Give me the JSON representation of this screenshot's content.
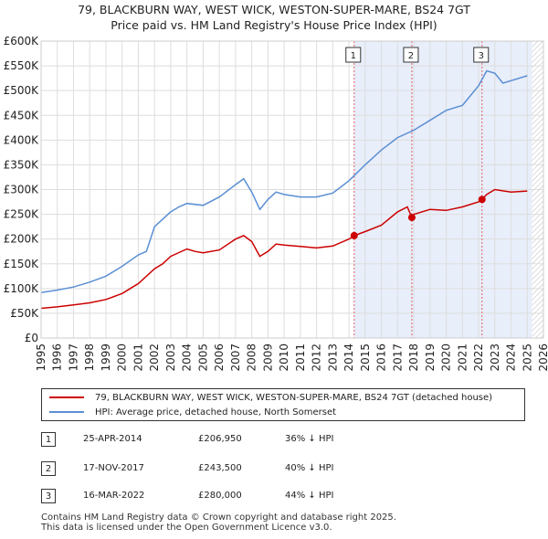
{
  "title": {
    "line1": "79, BLACKBURN WAY, WEST WICK, WESTON-SUPER-MARE, BS24 7GT",
    "line2": "Price paid vs. HM Land Registry's House Price Index (HPI)"
  },
  "legend": {
    "property_label": "79, BLACKBURN WAY, WEST WICK, WESTON-SUPER-MARE, BS24 7GT (detached house)",
    "hpi_label": "HPI: Average price, detached house, North Somerset"
  },
  "colors": {
    "property": "#cc0000",
    "hpi": "#5b8fd4",
    "shade": "#e8eefa",
    "sale_marker_line": "#e06060",
    "grid": "#dddddd"
  },
  "sales": [
    {
      "num": "1",
      "date": "25-APR-2014",
      "price": "£206,950",
      "hpi": "36% ↓ HPI"
    },
    {
      "num": "2",
      "date": "17-NOV-2017",
      "price": "£243,500",
      "hpi": "40% ↓ HPI"
    },
    {
      "num": "3",
      "date": "16-MAR-2022",
      "price": "£280,000",
      "hpi": "44% ↓ HPI"
    }
  ],
  "footer": {
    "line1": "Contains HM Land Registry data © Crown copyright and database right 2025.",
    "line2": "This data is licensed under the Open Government Licence v3.0."
  },
  "chart_data": {
    "type": "line",
    "xlim": [
      1995,
      2026
    ],
    "ylim": [
      0,
      600000
    ],
    "x_ticks": [
      1995,
      1996,
      1997,
      1998,
      1999,
      2000,
      2001,
      2002,
      2003,
      2004,
      2005,
      2006,
      2007,
      2008,
      2009,
      2010,
      2011,
      2012,
      2013,
      2014,
      2015,
      2016,
      2017,
      2018,
      2019,
      2020,
      2021,
      2022,
      2023,
      2024,
      2025,
      2026
    ],
    "y_ticks": [
      0,
      50000,
      100000,
      150000,
      200000,
      250000,
      300000,
      350000,
      400000,
      450000,
      500000,
      550000,
      600000
    ],
    "y_tick_labels": [
      "£0",
      "£50K",
      "£100K",
      "£150K",
      "£200K",
      "£250K",
      "£300K",
      "£350K",
      "£400K",
      "£450K",
      "£500K",
      "£550K",
      "£600K"
    ],
    "shaded_region": [
      2014.3,
      2025.3
    ],
    "future_hatch_from": 2025.3,
    "sale_points": [
      {
        "label": "1",
        "x": 2014.32,
        "y": 206950
      },
      {
        "label": "2",
        "x": 2017.88,
        "y": 243500
      },
      {
        "label": "3",
        "x": 2022.21,
        "y": 280000
      }
    ],
    "series": [
      {
        "name": "79, BLACKBURN WAY, WEST WICK, WESTON-SUPER-MARE, BS24 7GT (detached house)",
        "color": "#cc0000",
        "x": [
          1995,
          1996,
          1997,
          1998,
          1999,
          2000,
          2000.5,
          2001,
          2002,
          2002.5,
          2003,
          2004,
          2004.5,
          2005,
          2006,
          2007,
          2007.5,
          2008,
          2008.5,
          2009,
          2009.5,
          2010,
          2011,
          2012,
          2013,
          2014,
          2014.32,
          2015,
          2016,
          2017,
          2017.6,
          2017.88,
          2018,
          2019,
          2020,
          2021,
          2022,
          2022.21,
          2022.5,
          2023,
          2024,
          2025
        ],
        "y": [
          60000,
          63000,
          67000,
          71000,
          78000,
          90000,
          100000,
          110000,
          140000,
          150000,
          165000,
          180000,
          175000,
          172000,
          178000,
          200000,
          207000,
          195000,
          165000,
          175000,
          190000,
          188000,
          185000,
          182000,
          186000,
          200000,
          206950,
          215000,
          228000,
          255000,
          265000,
          243500,
          250000,
          260000,
          258000,
          265000,
          275000,
          280000,
          290000,
          300000,
          295000,
          297000
        ]
      },
      {
        "name": "HPI: Average price, detached house, North Somerset",
        "color": "#5b8fd4",
        "x": [
          1995,
          1996,
          1997,
          1998,
          1999,
          2000,
          2001,
          2001.5,
          2002,
          2003,
          2003.5,
          2004,
          2005,
          2006,
          2007,
          2007.5,
          2008,
          2008.5,
          2009,
          2009.5,
          2010,
          2011,
          2012,
          2013,
          2014,
          2015,
          2016,
          2017,
          2018,
          2019,
          2020,
          2021,
          2022,
          2022.5,
          2023,
          2023.5,
          2024,
          2025
        ],
        "y": [
          92000,
          97000,
          103000,
          113000,
          125000,
          145000,
          168000,
          175000,
          225000,
          255000,
          265000,
          272000,
          268000,
          285000,
          310000,
          322000,
          295000,
          260000,
          280000,
          295000,
          290000,
          285000,
          285000,
          293000,
          318000,
          350000,
          380000,
          405000,
          420000,
          440000,
          460000,
          470000,
          510000,
          540000,
          535000,
          515000,
          520000,
          530000
        ]
      }
    ]
  }
}
